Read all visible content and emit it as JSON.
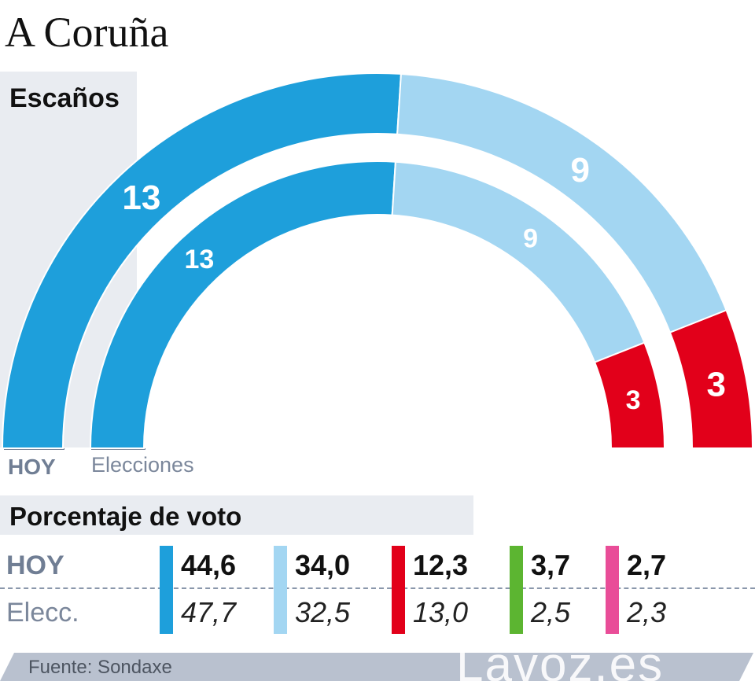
{
  "title": "A Coruña",
  "seats_label": "Escaños",
  "ring_labels": {
    "today": "HOY",
    "elections": "Elecciones"
  },
  "vote_label": "Porcentaje de voto",
  "row_labels": {
    "today": "HOY",
    "elections": "Elecc."
  },
  "footer": {
    "source": "Fuente: Sondaxe",
    "brand": "Lavoz.es"
  },
  "colors": {
    "blue": "#1e9fdb",
    "lightblue": "#a3d6f2",
    "red": "#e2001a",
    "green": "#5cb531",
    "pink": "#e94d98",
    "panel": "#e9ecf1",
    "footer": "#b9c1cf"
  },
  "chart_data": [
    {
      "type": "pie",
      "title": "Escaños",
      "series": [
        {
          "name": "HOY",
          "values": [
            13,
            9,
            3
          ]
        },
        {
          "name": "Elecciones",
          "values": [
            13,
            9,
            3
          ]
        }
      ],
      "seat_labels_today": [
        "13",
        "9",
        "3"
      ],
      "seat_labels_elections": [
        "13",
        "9",
        "3"
      ],
      "colors": [
        "#1e9fdb",
        "#a3d6f2",
        "#e2001a"
      ]
    },
    {
      "type": "table",
      "title": "Porcentaje de voto",
      "series": [
        {
          "name": "HOY",
          "values": [
            44.6,
            34.0,
            12.3,
            3.7,
            2.7
          ]
        },
        {
          "name": "Elecc.",
          "values": [
            47.7,
            32.5,
            13.0,
            2.5,
            2.3
          ]
        }
      ],
      "labels_today": [
        "44,6",
        "34,0",
        "12,3",
        "3,7",
        "2,7"
      ],
      "labels_elections": [
        "47,7",
        "32,5",
        "13,0",
        "2,5",
        "2,3"
      ],
      "colors": [
        "#1e9fdb",
        "#a3d6f2",
        "#e2001a",
        "#5cb531",
        "#e94d98"
      ]
    }
  ]
}
